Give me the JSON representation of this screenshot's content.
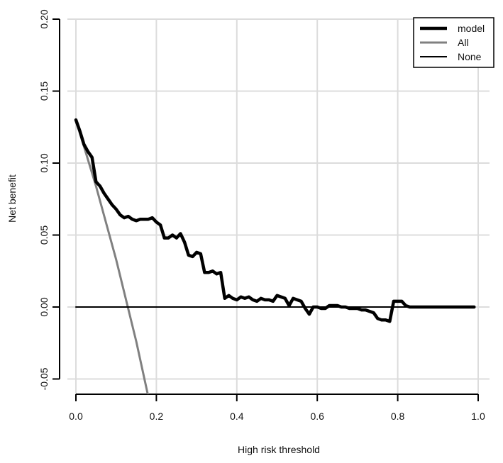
{
  "chart_data": {
    "type": "line",
    "title": "",
    "xlabel": "High risk threshold",
    "ylabel": "Net benefit",
    "xlim": [
      0.0,
      1.0
    ],
    "ylim": [
      -0.05,
      0.2
    ],
    "x_ticks": [
      "0.0",
      "0.2",
      "0.4",
      "0.6",
      "0.8",
      "1.0"
    ],
    "y_ticks": [
      "-0.05",
      "0.00",
      "0.05",
      "0.10",
      "0.15",
      "0.20"
    ],
    "grid": true,
    "legend_position": "top-right",
    "series": [
      {
        "name": "model",
        "color": "#000000",
        "x": [
          0.0,
          0.01,
          0.02,
          0.03,
          0.04,
          0.05,
          0.06,
          0.07,
          0.08,
          0.09,
          0.1,
          0.11,
          0.12,
          0.13,
          0.14,
          0.15,
          0.16,
          0.17,
          0.18,
          0.19,
          0.2,
          0.21,
          0.22,
          0.23,
          0.24,
          0.25,
          0.26,
          0.27,
          0.28,
          0.29,
          0.3,
          0.31,
          0.32,
          0.33,
          0.34,
          0.35,
          0.36,
          0.37,
          0.38,
          0.39,
          0.4,
          0.41,
          0.42,
          0.43,
          0.44,
          0.45,
          0.46,
          0.47,
          0.48,
          0.49,
          0.5,
          0.51,
          0.52,
          0.53,
          0.54,
          0.55,
          0.56,
          0.57,
          0.58,
          0.59,
          0.6,
          0.61,
          0.62,
          0.63,
          0.64,
          0.65,
          0.66,
          0.67,
          0.68,
          0.69,
          0.7,
          0.71,
          0.72,
          0.73,
          0.74,
          0.75,
          0.76,
          0.77,
          0.78,
          0.79,
          0.8,
          0.81,
          0.82,
          0.83,
          0.84,
          0.85,
          0.86,
          0.87,
          0.88,
          0.89,
          0.9,
          0.91,
          0.92,
          0.93,
          0.94,
          0.95,
          0.96,
          0.97,
          0.98,
          0.99
        ],
        "y": [
          0.13,
          0.122,
          0.113,
          0.108,
          0.104,
          0.087,
          0.084,
          0.079,
          0.075,
          0.071,
          0.068,
          0.064,
          0.062,
          0.063,
          0.061,
          0.06,
          0.061,
          0.061,
          0.061,
          0.062,
          0.059,
          0.057,
          0.048,
          0.048,
          0.05,
          0.048,
          0.051,
          0.045,
          0.036,
          0.035,
          0.038,
          0.037,
          0.024,
          0.024,
          0.025,
          0.023,
          0.024,
          0.006,
          0.008,
          0.006,
          0.005,
          0.007,
          0.006,
          0.007,
          0.005,
          0.004,
          0.006,
          0.005,
          0.005,
          0.004,
          0.008,
          0.007,
          0.006,
          0.001,
          0.006,
          0.005,
          0.004,
          -0.001,
          -0.005,
          0.0,
          0.0,
          -0.001,
          -0.001,
          0.001,
          0.001,
          0.001,
          0.0,
          0.0,
          -0.001,
          -0.001,
          -0.001,
          -0.002,
          -0.002,
          -0.003,
          -0.004,
          -0.008,
          -0.009,
          -0.009,
          -0.01,
          0.004,
          0.004,
          0.004,
          0.001,
          0.0,
          0.0,
          0.0,
          0.0,
          0.0,
          0.0,
          0.0,
          0.0,
          0.0,
          0.0,
          0.0,
          0.0,
          0.0,
          0.0,
          0.0,
          0.0,
          0.0
        ]
      },
      {
        "name": "All",
        "color": "#808080",
        "x": [
          0.0,
          0.05,
          0.1,
          0.15,
          0.2
        ],
        "y": [
          0.13,
          0.084,
          0.033,
          -0.024,
          -0.088
        ]
      },
      {
        "name": "None",
        "color": "#000000",
        "x": [
          0.0,
          0.99
        ],
        "y": [
          0.0,
          0.0
        ]
      }
    ]
  }
}
